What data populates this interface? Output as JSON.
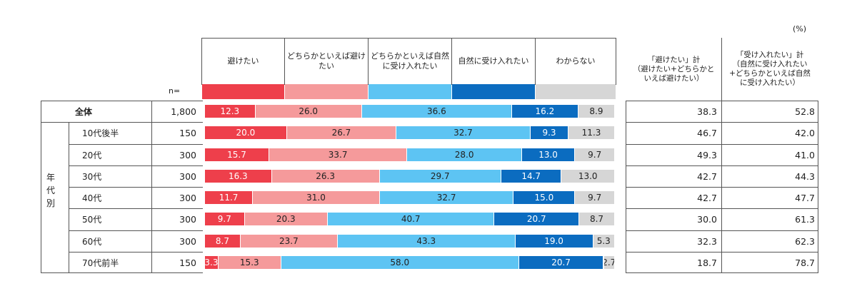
{
  "unit_label": "(%)",
  "n_label": "n=",
  "col_headers": [
    "避けたい",
    "どちらかといえば避け\nたい",
    "どちらかといえば自然\nに受け入れたい",
    "自然に受け入れたい",
    "わからない"
  ],
  "summary_headers": [
    "「避けたい」計\n（避けたい+どちらかと\nいえば避けたい）",
    "「受け入れたい」計\n（自然に受け入れたい\n+どちらかといえば自然\nに受け入れたい）"
  ],
  "group_label": "年\n代\n別",
  "colors": {
    "avoid": "#ee3f4b",
    "rather_avoid": "#f59a9b",
    "rather_accept": "#5dc4f3",
    "accept": "#0b6cc0",
    "unknown": "#d6d6d6"
  },
  "chart_data": {
    "type": "bar",
    "stacked": true,
    "orientation": "horizontal",
    "categories": [
      "全体",
      "10代後半",
      "20代",
      "30代",
      "40代",
      "50代",
      "60代",
      "70代前半"
    ],
    "n": [
      "1,800",
      "150",
      "300",
      "300",
      "300",
      "300",
      "300",
      "150"
    ],
    "series": [
      {
        "name": "避けたい",
        "values": [
          12.3,
          20.0,
          15.7,
          16.3,
          11.7,
          9.7,
          8.7,
          3.3
        ]
      },
      {
        "name": "どちらかといえば避けたい",
        "values": [
          26.0,
          26.7,
          33.7,
          26.3,
          31.0,
          20.3,
          23.7,
          15.3
        ]
      },
      {
        "name": "どちらかといえば自然に受け入れたい",
        "values": [
          36.6,
          32.7,
          28.0,
          29.7,
          32.7,
          40.7,
          43.3,
          58.0
        ]
      },
      {
        "name": "自然に受け入れたい",
        "values": [
          16.2,
          9.3,
          13.0,
          14.7,
          15.0,
          20.7,
          19.0,
          20.7
        ]
      },
      {
        "name": "わからない",
        "values": [
          8.9,
          11.3,
          9.7,
          13.0,
          9.7,
          8.7,
          5.3,
          2.7
        ]
      }
    ],
    "summary_avoid": [
      "38.3",
      "46.7",
      "49.3",
      "42.7",
      "42.7",
      "30.0",
      "32.3",
      "18.7"
    ],
    "summary_accept": [
      "52.8",
      "42.0",
      "41.0",
      "44.3",
      "47.7",
      "61.3",
      "62.3",
      "78.7"
    ],
    "xlim": [
      0,
      100
    ]
  }
}
